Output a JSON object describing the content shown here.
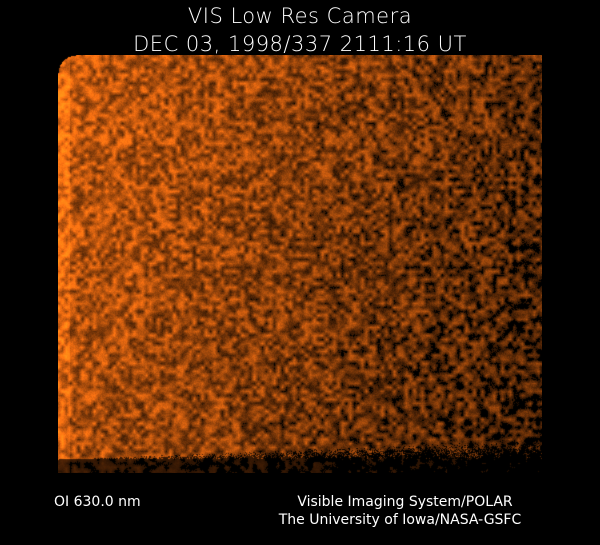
{
  "header": {
    "title": "VIS Low Res Camera",
    "timestamp": "DEC 03, 1998/337 2111:16 UT"
  },
  "image": {
    "description_colormap": [
      "#000000",
      "#5a1a02",
      "#a0400a",
      "#d86a10"
    ]
  },
  "footer": {
    "wavelength": "OI  630.0 nm",
    "instrument": "Visible Imaging System/POLAR",
    "credit": "The University of Iowa/NASA-GSFC"
  }
}
